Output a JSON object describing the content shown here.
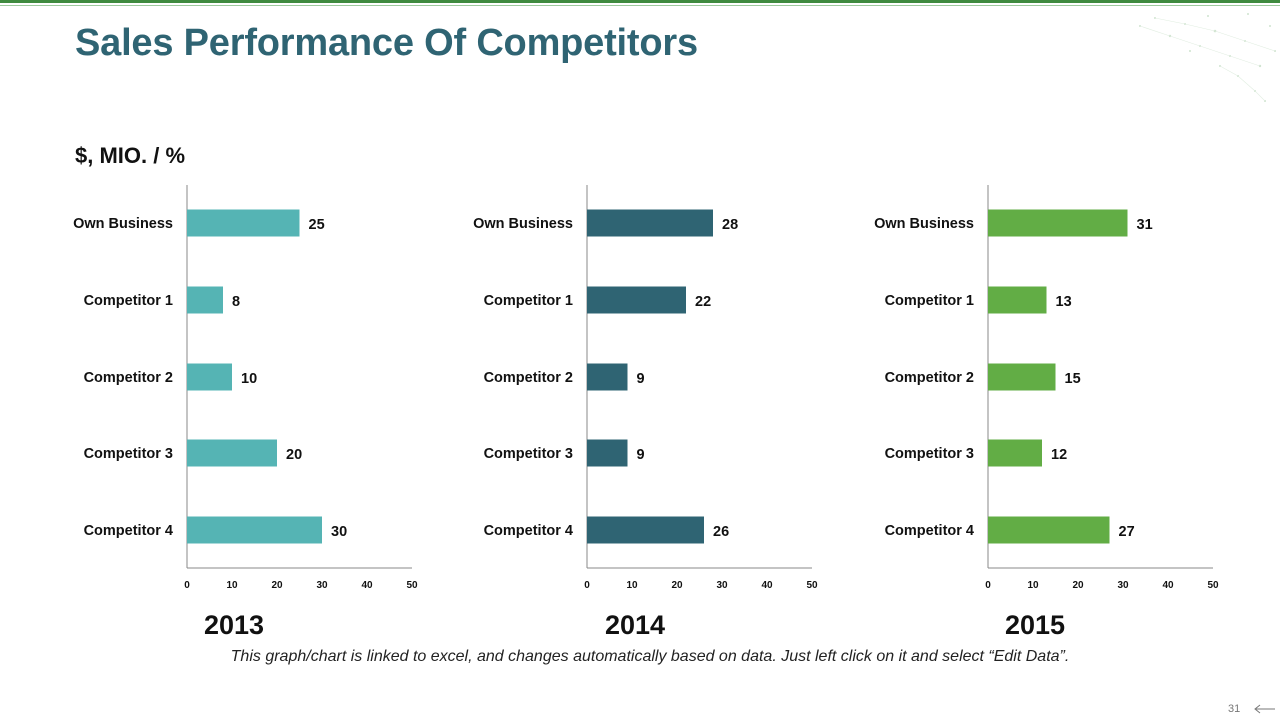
{
  "slide": {
    "title": "Sales Performance Of Competitors",
    "units": "$, MIO. / %",
    "note": "This graph/chart is linked to excel, and changes automatically based on data. Just left click on it and select “Edit Data”.",
    "page_number": "31"
  },
  "colors": {
    "title": "#2f6473",
    "bar_2013": "#55b4b4",
    "bar_2014": "#2f6473",
    "bar_2015": "#62ad45",
    "accent_line": "#3f8a3f"
  },
  "chart_data": [
    {
      "type": "bar",
      "orientation": "horizontal",
      "title": "2013",
      "categories": [
        "Own Business",
        "Competitor 1",
        "Competitor 2",
        "Competitor 3",
        "Competitor 4"
      ],
      "values": [
        25,
        8,
        10,
        20,
        30
      ],
      "xlim": [
        0,
        50
      ],
      "xticks": [
        0,
        10,
        20,
        30,
        40,
        50
      ],
      "color": "#55b4b4",
      "grid": false
    },
    {
      "type": "bar",
      "orientation": "horizontal",
      "title": "2014",
      "categories": [
        "Own Business",
        "Competitor 1",
        "Competitor 2",
        "Competitor 3",
        "Competitor 4"
      ],
      "values": [
        28,
        22,
        9,
        9,
        26
      ],
      "xlim": [
        0,
        50
      ],
      "xticks": [
        0,
        10,
        20,
        30,
        40,
        50
      ],
      "color": "#2f6473",
      "grid": false
    },
    {
      "type": "bar",
      "orientation": "horizontal",
      "title": "2015",
      "categories": [
        "Own Business",
        "Competitor 1",
        "Competitor 2",
        "Competitor 3",
        "Competitor 4"
      ],
      "values": [
        31,
        13,
        15,
        12,
        27
      ],
      "xlim": [
        0,
        50
      ],
      "xticks": [
        0,
        10,
        20,
        30,
        40,
        50
      ],
      "color": "#62ad45",
      "grid": false
    }
  ]
}
